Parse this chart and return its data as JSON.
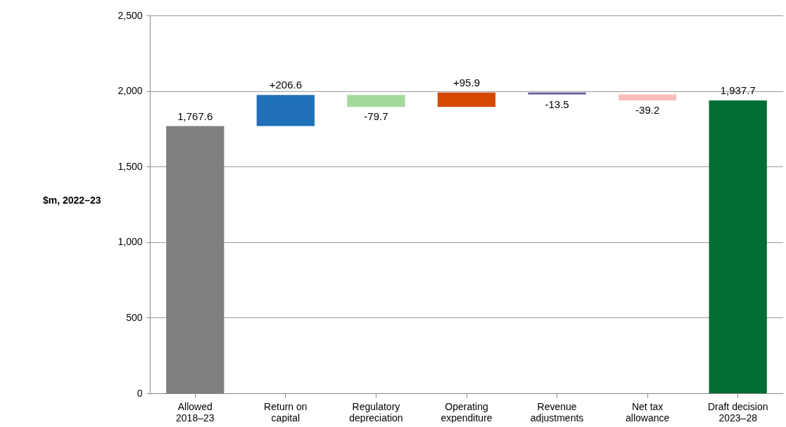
{
  "chart_data": {
    "type": "bar",
    "ylabel": "$m, 2022–23",
    "categories": [
      "Allowed 2018–23",
      "Return on capital",
      "Regulatory depreciation",
      "Operating expenditure",
      "Revenue adjustments",
      "Net tax allowance",
      "Draft decision 2023–28"
    ],
    "values": [
      1767.6,
      206.6,
      -79.7,
      95.9,
      -13.5,
      -39.2,
      1937.7
    ],
    "base": [
      0,
      1767.6,
      1974.2,
      1894.5,
      1990.4,
      1976.9,
      0
    ],
    "colors": [
      "#7f7f7f",
      "#1f70b8",
      "#a3d99a",
      "#d64a00",
      "#6a5a9e",
      "#f9bcbc",
      "#006e32"
    ],
    "value_labels": [
      "1,767.6",
      "+206.6",
      "-79.7",
      "+95.9",
      "-13.5",
      "-39.2",
      "1,937.7"
    ],
    "ylim": [
      0,
      2500
    ],
    "yticks": [
      0,
      500,
      {
        "value": 1000,
        "label": "1,000"
      },
      {
        "value": 1500,
        "label": "1,500"
      },
      {
        "value": 2000,
        "label": "2,000"
      },
      {
        "value": 2500,
        "label": "2,500"
      }
    ],
    "grid": "y"
  }
}
